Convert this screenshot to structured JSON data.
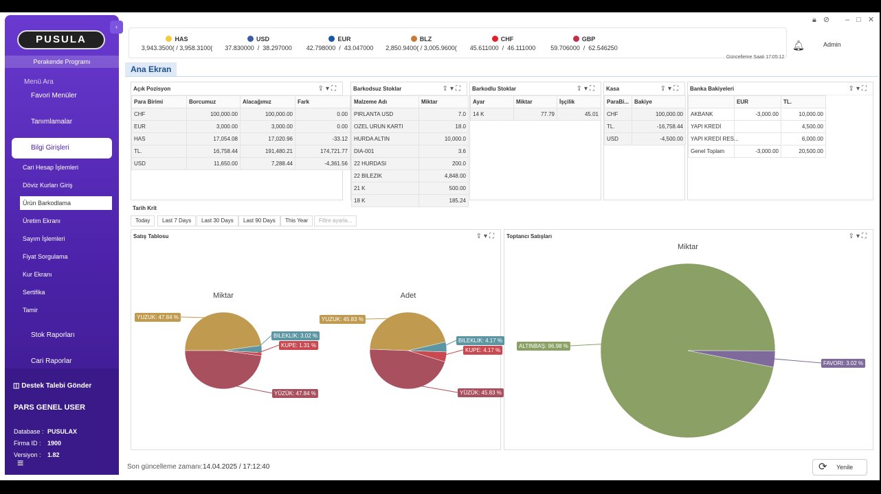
{
  "sidebar": {
    "logo": "PUSULA",
    "subtitle": "Perakende Programı",
    "search": "Menü Ara",
    "menu": [
      "Favori Menüler",
      "Tanımlamalar",
      "Bilgi Girişleri"
    ],
    "submenu": [
      "Cari Hesap İşlemleri",
      "Döviz Kurları Giriş",
      "Ürün Barkodlama",
      "Üretim Ekranı",
      "Sayım İşlemleri",
      "Fiyat Sorgulama",
      "Kur Ekranı",
      "Sertifika",
      "Tamir"
    ],
    "menu_after": [
      "Stok Raporları",
      "Cari Raporlar"
    ],
    "support": "Destek Talebi Gönder",
    "user": "PARS GENEL USER",
    "info": [
      {
        "label": "Database :",
        "value": "PUSULAX"
      },
      {
        "label": "Firma ID :",
        "value": "1900"
      },
      {
        "label": "Versiyon :",
        "value": "1.82"
      }
    ]
  },
  "currencies": [
    {
      "code": "HAS",
      "rates": "3,943.3500( / 3,958.3100("
    },
    {
      "code": "USD",
      "rates": "37.830000  /  38.297000"
    },
    {
      "code": "EUR",
      "rates": "42.798000  /  43.047000"
    },
    {
      "code": "BLZ",
      "rates": "2,850.9400( / 3,005.9600("
    },
    {
      "code": "CHF",
      "rates": "45.611000  /  46.111000"
    },
    {
      "code": "GBP",
      "rates": "59.706000  /  62.546250"
    }
  ],
  "header": {
    "user": "Admin",
    "update_time": "Güncelleme Saati 17:05:12",
    "tab": "Ana Ekran"
  },
  "panels": [
    {
      "title": "Açık Pozisyon",
      "columns": [
        "Para Birimi",
        "Borcumuz",
        "Alacağımız",
        "Fark"
      ],
      "rows": [
        [
          "CHF",
          "100,000.00",
          "100,000.00",
          "0.00"
        ],
        [
          "EUR",
          "3,000.00",
          "3,000.00",
          "0.00"
        ],
        [
          "HAS",
          "17,054.08",
          "17,020.96",
          "-33.12"
        ],
        [
          "TL.",
          "16,758.44",
          "191,480.21",
          "174,721.77"
        ],
        [
          "USD",
          "11,650.00",
          "7,288.44",
          "-4,361.56"
        ]
      ]
    },
    {
      "title": "Barkodsuz Stoklar",
      "columns": [
        "Malzeme Adı",
        "Miktar"
      ],
      "rows": [
        [
          "PIRLANTA USD",
          "7.0"
        ],
        [
          "OZEL URUN KARTI",
          "18.0"
        ],
        [
          "HURDA ALTIN",
          "10,000.0"
        ],
        [
          "DIA-001",
          "3.6"
        ],
        [
          "22 HURDASI",
          "200.0"
        ],
        [
          "22 BILEZIK",
          "4,848.00"
        ],
        [
          "21 K",
          "500.00"
        ],
        [
          "18 K",
          "185.24"
        ]
      ]
    },
    {
      "title": "Barkodlu Stoklar",
      "columns": [
        "Ayar",
        "Miktar",
        "İşçilik"
      ],
      "rows": [
        [
          "14 K",
          "77.79",
          "45.01"
        ]
      ]
    },
    {
      "title": "Kasa",
      "columns": [
        "ParaBi...",
        "Bakiye"
      ],
      "rows": [
        [
          "CHF",
          "100,000.00"
        ],
        [
          "TL.",
          "-16,758.44"
        ],
        [
          "USD",
          "-4,500.00"
        ]
      ]
    },
    {
      "title": "Banka Bakiyeleri",
      "columns": [
        "EUR",
        "TL."
      ],
      "rows": [
        [
          "AKBANK",
          "-3,000.00",
          "10,000.00"
        ],
        [
          "YAPI KREDİ",
          null,
          "4,500.00"
        ],
        [
          "YAPI KREDİ RES...",
          null,
          "6,000.00"
        ],
        [
          "Genel Toplam",
          "-3,000.00",
          "20,500.00"
        ]
      ]
    }
  ],
  "date_filter": {
    "label": "Tarih Krit",
    "buttons": [
      "Today",
      "Last 7 Days",
      "Last 30 Days",
      "Last 90 Days",
      "This Year",
      "Filtre ayarla..."
    ]
  },
  "chart_panels": [
    "Satış Tablosu",
    "Toptancı Satışları"
  ],
  "chart_data": [
    {
      "type": "pie",
      "title": "Miktar",
      "categories": [
        "YUZUK",
        "BILEKLIK",
        "KUPE",
        "YÜZÜK"
      ],
      "values": [
        47.84,
        3.02,
        1.31,
        47.84
      ],
      "value_labels": [
        "YUZUK: 47.84 %",
        "BILEKLIK: 3.02 %",
        "KUPE: 1.31 %",
        "YÜZÜK: 47.84 %"
      ],
      "colors": [
        "#c09a4f",
        "#5b96a2",
        "#c84a50",
        "#a9505f"
      ]
    },
    {
      "type": "pie",
      "title": "Adet",
      "categories": [
        "YUZUK",
        "BILEKLIK",
        "KUPE",
        "YÜZÜK"
      ],
      "values": [
        45.83,
        4.17,
        4.17,
        45.83
      ],
      "value_labels": [
        "YUZUK: 45.83 %",
        "BILEKLIK: 4.17 %",
        "KUPE: 4.17 %",
        "YÜZÜK: 45.83 %"
      ],
      "colors": [
        "#c09a4f",
        "#5b96a2",
        "#c84a50",
        "#a9505f"
      ]
    },
    {
      "type": "pie",
      "title": "Miktar",
      "categories": [
        "ALTINBAŞ",
        "FAVORI"
      ],
      "values": [
        96.98,
        3.02
      ],
      "value_labels": [
        "ALTINBAŞ: 96.98 %",
        "FAVORI: 3.02 %"
      ],
      "colors": [
        "#8aa064",
        "#7e6a9b"
      ]
    }
  ],
  "footer": {
    "label": "Son güncelleme zamanı:",
    "time": "14.04.2025 / 17:12:40",
    "refresh": "Yenile"
  }
}
